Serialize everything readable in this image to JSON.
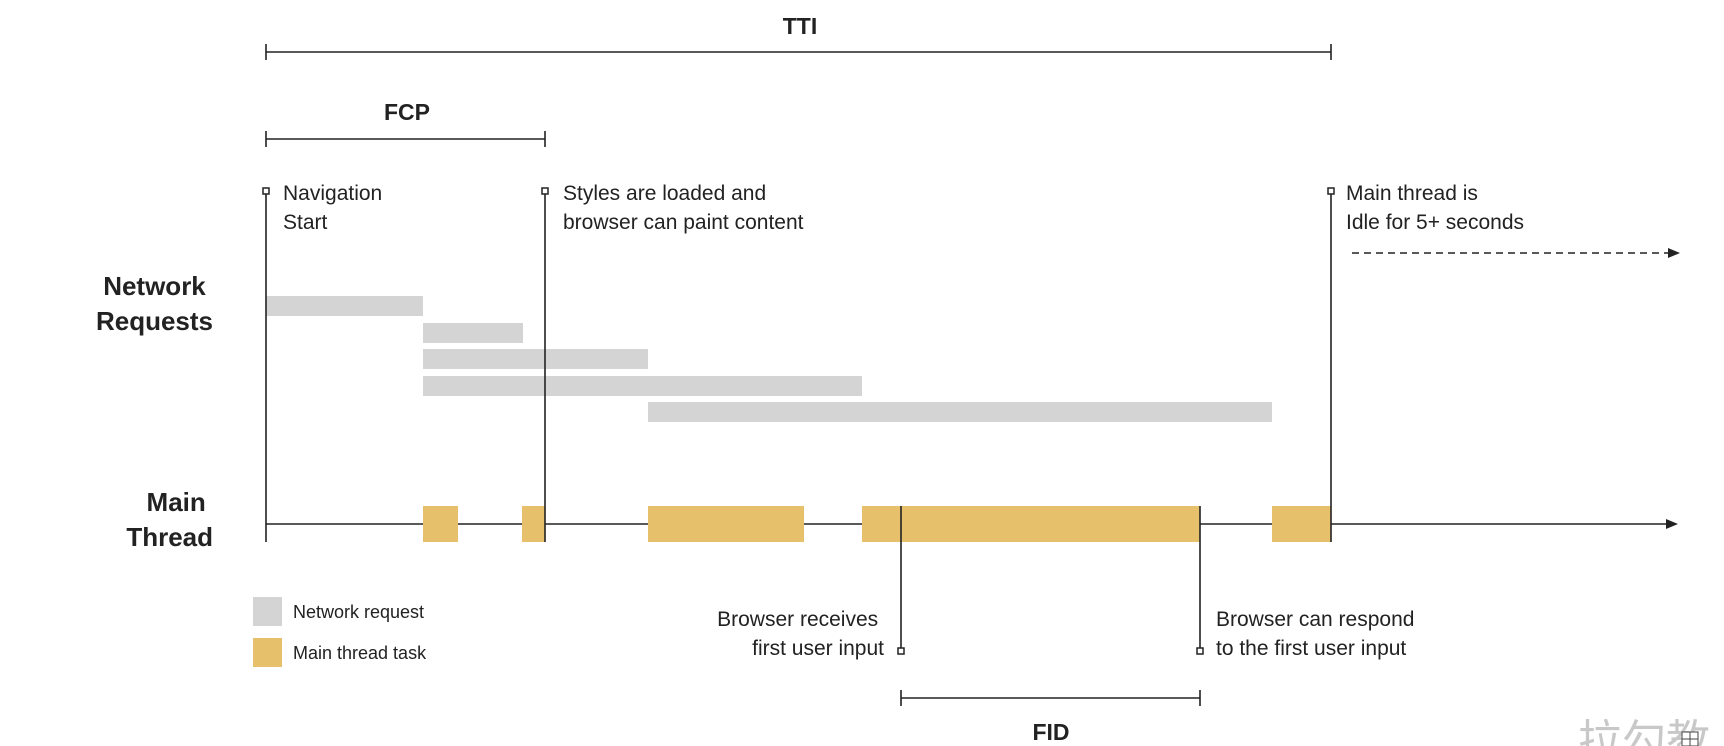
{
  "spans": {
    "tti": "TTI",
    "fcp": "FCP",
    "fid": "FID"
  },
  "rows": {
    "network": [
      "Network",
      "Requests"
    ],
    "main": [
      "Main",
      "Thread"
    ]
  },
  "markers": {
    "navigation_start": [
      "Navigation",
      "Start"
    ],
    "styles_loaded": [
      "Styles are loaded and",
      "browser can paint content"
    ],
    "idle": [
      "Main thread is",
      "Idle for 5+ seconds"
    ],
    "input_received": [
      "Browser receives",
      "first user input"
    ],
    "input_response": [
      "Browser can respond",
      "to the first user input"
    ]
  },
  "legend": {
    "network_request": "Network request",
    "main_thread_task": "Main thread task"
  },
  "colors": {
    "network_bar": "#d4d4d4",
    "task_bar": "#e6c06a",
    "line": "#222222"
  },
  "corner_mark": "拉勾教"
}
